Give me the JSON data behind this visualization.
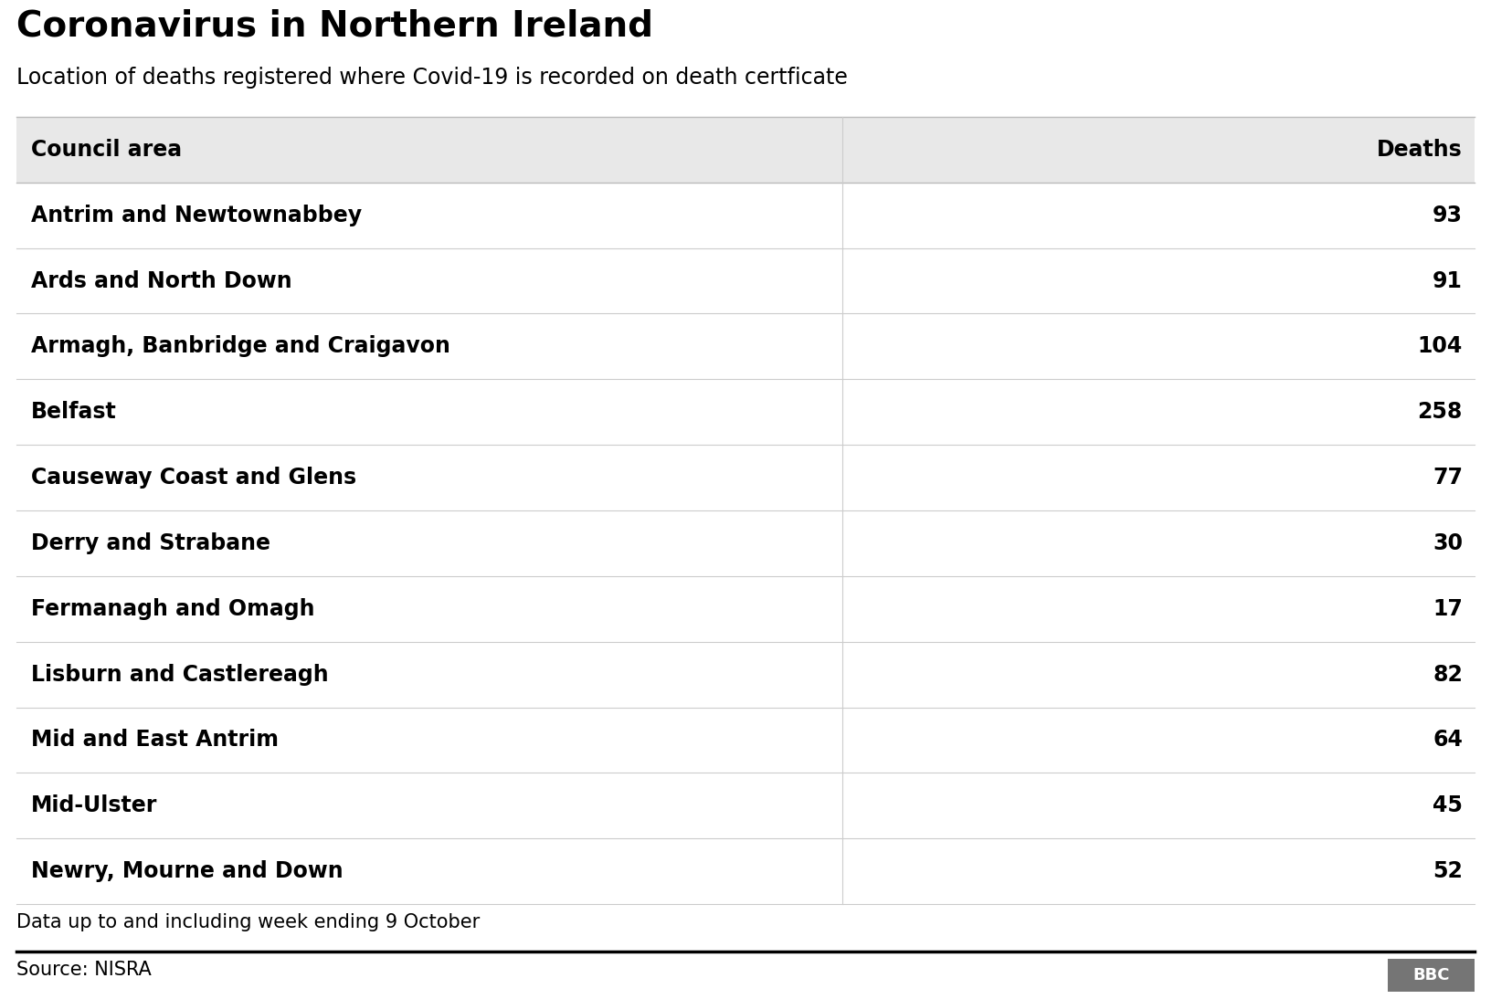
{
  "title": "Coronavirus in Northern Ireland",
  "subtitle": "Location of deaths registered where Covid-19 is recorded on death certficate",
  "col1_header": "Council area",
  "col2_header": "Deaths",
  "rows": [
    {
      "area": "Antrim and Newtownabbey",
      "deaths": 93
    },
    {
      "area": "Ards and North Down",
      "deaths": 91
    },
    {
      "area": "Armagh, Banbridge and Craigavon",
      "deaths": 104
    },
    {
      "area": "Belfast",
      "deaths": 258
    },
    {
      "area": "Causeway Coast and Glens",
      "deaths": 77
    },
    {
      "area": "Derry and Strabane",
      "deaths": 30
    },
    {
      "area": "Fermanagh and Omagh",
      "deaths": 17
    },
    {
      "area": "Lisburn and Castlereagh",
      "deaths": 82
    },
    {
      "area": "Mid and East Antrim",
      "deaths": 64
    },
    {
      "area": "Mid-Ulster",
      "deaths": 45
    },
    {
      "area": "Newry, Mourne and Down",
      "deaths": 52
    }
  ],
  "footer_note": "Data up to and including week ending 9 October",
  "source": "Source: NISRA",
  "bbc_label": "BBC",
  "bg_color": "#ffffff",
  "header_bg_color": "#e8e8e8",
  "row_bg_white": "#ffffff",
  "divider_color": "#cccccc",
  "text_color": "#000000",
  "title_fontsize": 28,
  "subtitle_fontsize": 17,
  "header_fontsize": 17,
  "row_fontsize": 17,
  "footer_fontsize": 15,
  "col_split": 0.565
}
